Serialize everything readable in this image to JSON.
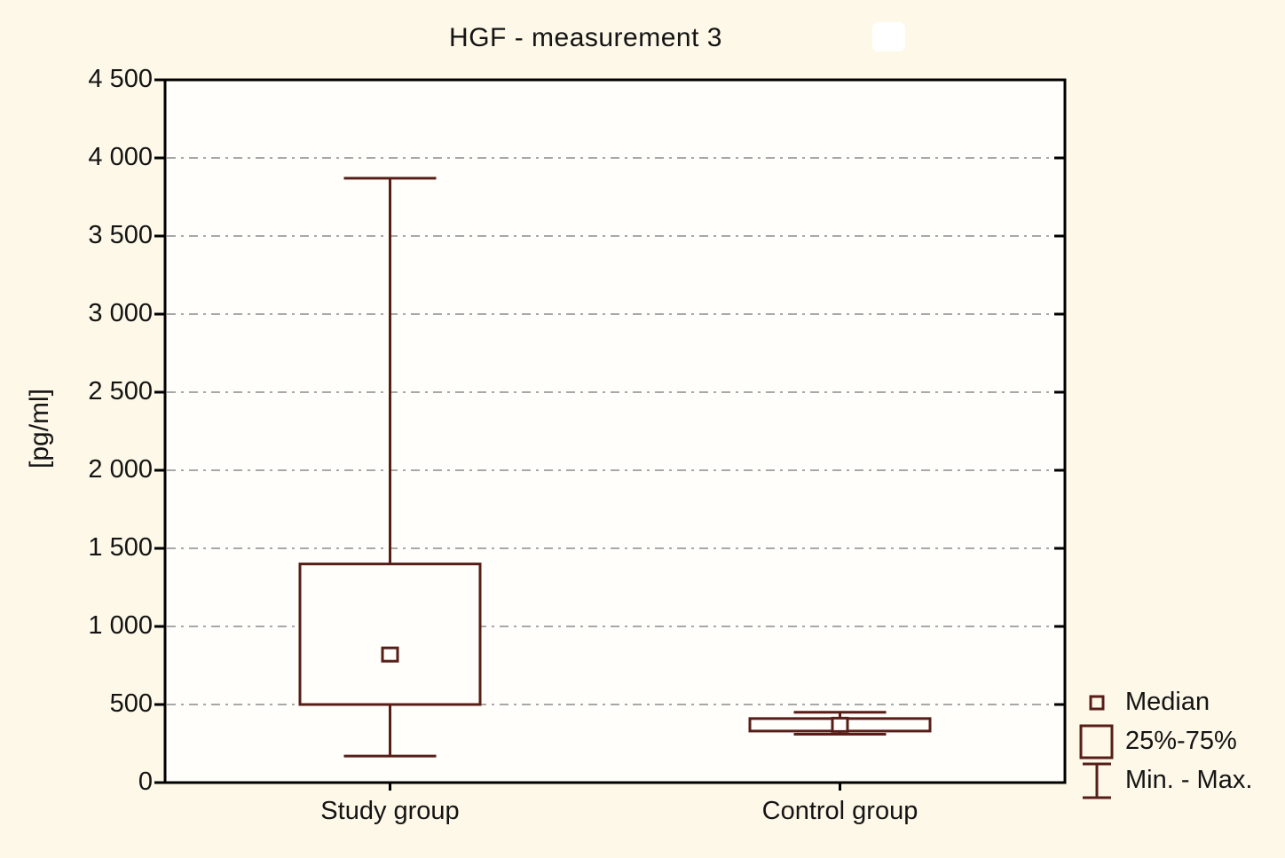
{
  "title": "HGF - measurement 3",
  "colors": {
    "figure_background": "#fdf8e8",
    "plot_background": "#fffefa",
    "frame": "#000000",
    "grid": "#a8a8a8",
    "box_outline": "#571e18",
    "text": "#141414"
  },
  "chart_data": {
    "type": "boxplot",
    "title": "HGF - measurement 3",
    "ylabel": "[pg/ml]",
    "categories": [
      "Study group",
      "Control group"
    ],
    "series": [
      {
        "name": "Study group",
        "min": 170,
        "q1": 500,
        "median": 820,
        "q3": 1400,
        "max": 3870
      },
      {
        "name": "Control group",
        "min": 310,
        "q1": 330,
        "median": 370,
        "q3": 410,
        "max": 450
      }
    ],
    "ylim": [
      0,
      4500
    ],
    "ytick_step": 500,
    "ytick_labels": [
      "0",
      "500",
      "1 000",
      "1 500",
      "2 000",
      "2 500",
      "3 000",
      "3 500",
      "4 000",
      "4 500"
    ],
    "grid": "horizontal dash-dot gridlines at each 500 from 500 to 4000",
    "legend_position": "bottom-right"
  },
  "legend": {
    "items": [
      {
        "symbol": "median-square-icon",
        "label": "Median"
      },
      {
        "symbol": "box-icon",
        "label": "25%-75%"
      },
      {
        "symbol": "whisker-icon",
        "label": "Min. - Max."
      }
    ]
  }
}
